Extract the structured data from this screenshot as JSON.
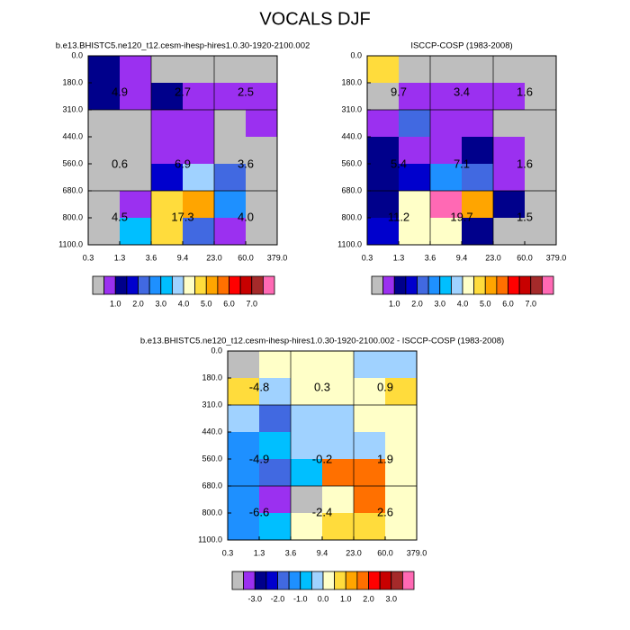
{
  "title": "VOCALS DJF",
  "chart_data": [
    {
      "type": "heatmap",
      "title": "b.e13.BHISTC5.ne120_t12.cesm-ihesp-hires1.0.30-1920-2100.002",
      "x_edges": [
        "0.3",
        "1.3",
        "3.6",
        "9.4",
        "23.0",
        "60.0",
        "379.0"
      ],
      "y_edges": [
        "0.0",
        "180.0",
        "310.0",
        "440.0",
        "560.0",
        "680.0",
        "800.0",
        "1100.0"
      ],
      "values": [
        [
          1.2,
          0.8,
          0.2,
          0.2,
          0.2,
          0.2
        ],
        [
          1.2,
          0.8,
          1.2,
          0.8,
          0.8,
          0.8
        ],
        [
          0.2,
          0.2,
          0.8,
          0.8,
          0.2,
          0.8
        ],
        [
          0.2,
          0.2,
          0.8,
          0.8,
          0.2,
          0.2
        ],
        [
          0.2,
          0.2,
          1.8,
          3.8,
          2.2,
          0.2
        ],
        [
          0.2,
          0.8,
          4.8,
          5.2,
          2.8,
          0.2
        ],
        [
          0.2,
          3.2,
          4.8,
          2.2,
          0.8,
          0.2
        ]
      ],
      "block_sums": [
        [
          4.9,
          2.7,
          2.5
        ],
        [
          0.6,
          6.9,
          3.6
        ],
        [
          4.5,
          17.3,
          {
            "value": 4,
            "label": "4.0"
          }
        ]
      ],
      "colorbar": {
        "colors": [
          "#bebebe",
          "#9b30f0",
          "#00008b",
          "#0000cd",
          "#4169e1",
          "#1e90ff",
          "#00bfff",
          "#a0d2ff",
          "#ffffc8",
          "#ffdc3c",
          "#ffa500",
          "#ff7000",
          "#ff0000",
          "#c80000",
          "#a52a2a",
          "#ff69b4"
        ],
        "levels": [
          0.5,
          1,
          1.5,
          2,
          2.5,
          3,
          3.5,
          4,
          4.5,
          5,
          5.5,
          6,
          6.5,
          7,
          7.5
        ],
        "ticks": [
          {
            "value": 1,
            "label": "1.0"
          },
          {
            "value": 2,
            "label": "2.0"
          },
          {
            "value": 3,
            "label": "3.0"
          },
          {
            "value": 4,
            "label": "4.0"
          },
          {
            "value": 5,
            "label": "5.0"
          },
          {
            "value": 6,
            "label": "6.0"
          },
          {
            "value": 7,
            "label": "7.0"
          }
        ]
      }
    },
    {
      "type": "heatmap",
      "title": "ISCCP-COSP (1983-2008)",
      "x_edges": [
        "0.3",
        "1.3",
        "3.6",
        "9.4",
        "23.0",
        "60.0",
        "379.0"
      ],
      "y_edges": [
        "0.0",
        "180.0",
        "310.0",
        "440.0",
        "560.0",
        "680.0",
        "800.0",
        "1100.0"
      ],
      "values": [
        [
          4.8,
          0.2,
          0.2,
          0.2,
          0.2,
          0.2
        ],
        [
          0.2,
          0.8,
          0.8,
          0.8,
          0.8,
          0.2
        ],
        [
          0.8,
          2.2,
          0.8,
          0.8,
          0.2,
          0.2
        ],
        [
          1.2,
          0.8,
          0.8,
          1.2,
          0.8,
          0.2
        ],
        [
          1.2,
          1.8,
          2.8,
          2.2,
          0.8,
          0.2
        ],
        [
          1.2,
          4.2,
          7.8,
          5.2,
          1.2,
          0.2
        ],
        [
          1.8,
          4.2,
          4.2,
          1.2,
          0.2,
          0.2
        ]
      ],
      "block_sums": [
        [
          9.7,
          3.4,
          1.6
        ],
        [
          5.4,
          7.1,
          1.6
        ],
        [
          11.2,
          19.7,
          1.5
        ]
      ],
      "colorbar": {
        "colors": [
          "#bebebe",
          "#9b30f0",
          "#00008b",
          "#0000cd",
          "#4169e1",
          "#1e90ff",
          "#00bfff",
          "#a0d2ff",
          "#ffffc8",
          "#ffdc3c",
          "#ffa500",
          "#ff7000",
          "#ff0000",
          "#c80000",
          "#a52a2a",
          "#ff69b4"
        ],
        "levels": [
          0.5,
          1,
          1.5,
          2,
          2.5,
          3,
          3.5,
          4,
          4.5,
          5,
          5.5,
          6,
          6.5,
          7,
          7.5
        ],
        "ticks": [
          {
            "value": 1,
            "label": "1.0"
          },
          {
            "value": 2,
            "label": "2.0"
          },
          {
            "value": 3,
            "label": "3.0"
          },
          {
            "value": 4,
            "label": "4.0"
          },
          {
            "value": 5,
            "label": "5.0"
          },
          {
            "value": 6,
            "label": "6.0"
          },
          {
            "value": 7,
            "label": "7.0"
          }
        ]
      }
    },
    {
      "type": "heatmap",
      "title": "b.e13.BHISTC5.ne120_t12.cesm-ihesp-hires1.0.30-1920-2100.002 - ISCCP-COSP (1983-2008)",
      "x_edges": [
        "0.3",
        "1.3",
        "3.6",
        "9.4",
        "23.0",
        "60.0",
        "379.0"
      ],
      "y_edges": [
        "0.0",
        "180.0",
        "310.0",
        "440.0",
        "560.0",
        "680.0",
        "800.0",
        "1100.0"
      ],
      "values": [
        [
          -3.8,
          0.2,
          0.2,
          0.2,
          -0.2,
          -0.2
        ],
        [
          0.8,
          -0.2,
          0.2,
          0.2,
          0.2,
          0.8
        ],
        [
          -0.2,
          -1.8,
          -0.2,
          -0.2,
          0.2,
          0.2
        ],
        [
          -1.2,
          -0.8,
          -0.2,
          -0.2,
          -0.2,
          0.2
        ],
        [
          -1.2,
          -1.8,
          -0.8,
          1.8,
          1.8,
          0.2
        ],
        [
          -1.2,
          -3.2,
          -3.8,
          0.2,
          1.8,
          0.2
        ],
        [
          -1.2,
          -0.8,
          0.2,
          0.8,
          0.8,
          0.2
        ]
      ],
      "block_sums": [
        [
          -4.8,
          0.3,
          0.9
        ],
        [
          -4.9,
          -0.2,
          1.9
        ],
        [
          -6.6,
          -2.4,
          2.6
        ]
      ],
      "colorbar": {
        "colors": [
          "#bebebe",
          "#9b30f0",
          "#00008b",
          "#0000cd",
          "#4169e1",
          "#1e90ff",
          "#00bfff",
          "#a0d2ff",
          "#ffffc8",
          "#ffdc3c",
          "#ffa500",
          "#ff7000",
          "#ff0000",
          "#c80000",
          "#a52a2a",
          "#ff69b4"
        ],
        "levels": [
          -3.5,
          -3,
          -2.5,
          -2,
          -1.5,
          -1,
          -0.5,
          0,
          0.5,
          1,
          1.5,
          2,
          2.5,
          3,
          3.5
        ],
        "ticks": [
          {
            "value": -3,
            "label": "-3.0"
          },
          {
            "value": -2,
            "label": "-2.0"
          },
          {
            "value": -1,
            "label": "-1.0"
          },
          {
            "value": 0,
            "label": "0.0"
          },
          {
            "value": 1,
            "label": "1.0"
          },
          {
            "value": 2,
            "label": "2.0"
          },
          {
            "value": 3,
            "label": "3.0"
          }
        ]
      }
    }
  ]
}
